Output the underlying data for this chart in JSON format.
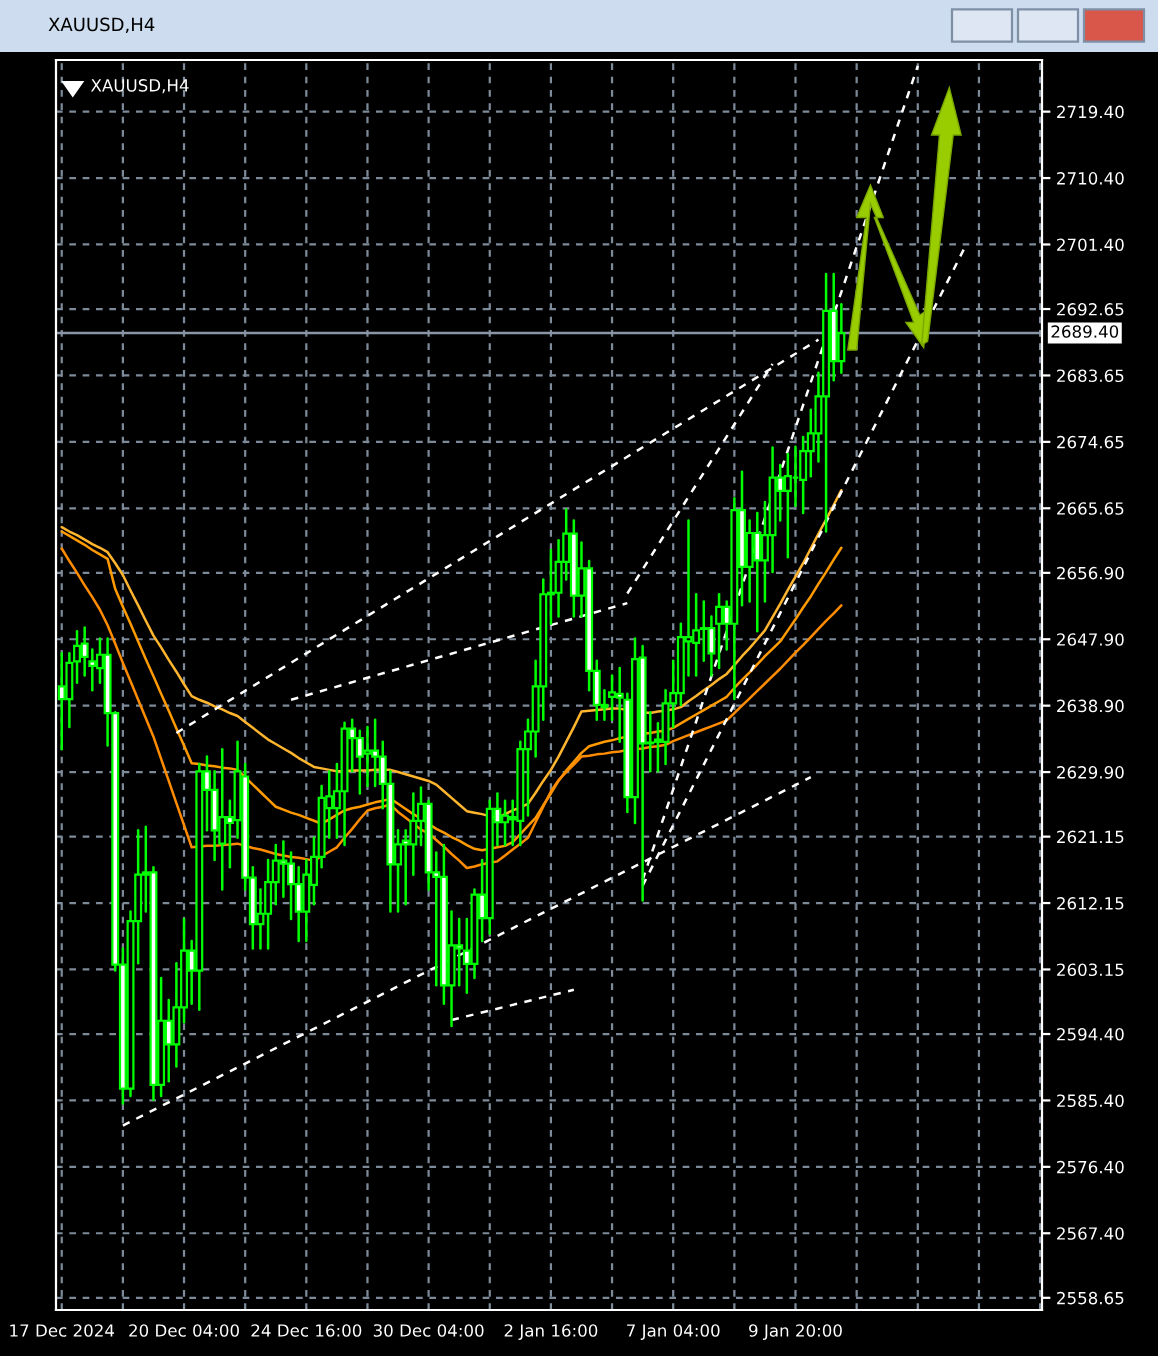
{
  "chart_data": {
    "type": "candlestick",
    "title": "XAUUSD,H4",
    "subtitle": "XAUUSD,H4",
    "categories": [
      "17 Dec 2024",
      null,
      null,
      null,
      null,
      null,
      null,
      null,
      null,
      null,
      null,
      null,
      null,
      null,
      null,
      null,
      "20 Dec 04:00",
      null,
      null,
      null,
      null,
      null,
      null,
      null,
      null,
      null,
      null,
      null,
      null,
      null,
      null,
      null,
      "24 Dec 16:00",
      null,
      null,
      null,
      null,
      null,
      null,
      null,
      null,
      null,
      null,
      null,
      null,
      null,
      null,
      null,
      "30 Dec 04:00",
      null,
      null,
      null,
      null,
      null,
      null,
      null,
      null,
      null,
      null,
      null,
      null,
      null,
      null,
      null,
      "2 Jan 16:00",
      null,
      null,
      null,
      null,
      null,
      null,
      null,
      null,
      null,
      null,
      null,
      null,
      null,
      null,
      null,
      "7 Jan 04:00",
      null,
      null,
      null,
      null,
      null,
      null,
      null,
      null,
      null,
      null,
      null,
      null,
      null,
      null,
      null,
      "9 Jan 20:00",
      null,
      null,
      null,
      null,
      null,
      null,
      null,
      null,
      null,
      null,
      null,
      null,
      null,
      null,
      null,
      null,
      null,
      null,
      null,
      null,
      null,
      null,
      null,
      null,
      null,
      null,
      null,
      null,
      null,
      null,
      null,
      null
    ],
    "ohlc": [
      [
        2641.5,
        2646,
        2633,
        2639.8
      ],
      [
        2639.8,
        2646,
        2636,
        2644.7
      ],
      [
        2644.9,
        2649,
        2642,
        2647
      ],
      [
        2647.3,
        2649.5,
        2643,
        2645.5
      ],
      [
        2644.9,
        2646.5,
        2641,
        2644.3
      ],
      [
        2644,
        2648,
        2642,
        2645.8
      ],
      [
        2645.8,
        2648,
        2633.5,
        2637.9
      ],
      [
        2637.9,
        2638,
        2603,
        2603.8
      ],
      [
        2603.8,
        2606,
        2585,
        2587
      ],
      [
        2587,
        2611,
        2586,
        2609.7
      ],
      [
        2609.7,
        2622,
        2604,
        2616
      ],
      [
        2616,
        2622.5,
        2611,
        2616.3
      ],
      [
        2616.3,
        2617,
        2585.5,
        2587.5
      ],
      [
        2587.5,
        2602,
        2586,
        2596.2
      ],
      [
        2596.2,
        2599,
        2588,
        2593
      ],
      [
        2593,
        2604,
        2590,
        2598
      ],
      [
        2598,
        2610,
        2596,
        2605.7
      ],
      [
        2605.7,
        2607,
        2598.5,
        2603
      ],
      [
        2603,
        2631,
        2597.7,
        2630
      ],
      [
        2630,
        2632,
        2622,
        2627.5
      ],
      [
        2627.5,
        2630,
        2618,
        2622
      ],
      [
        2620.2,
        2633,
        2614,
        2623.8
      ],
      [
        2623.8,
        2626,
        2617,
        2623
      ],
      [
        2623.4,
        2634,
        2621,
        2630
      ],
      [
        2629.3,
        2631,
        2614,
        2615.6
      ],
      [
        2615.6,
        2617,
        2606,
        2609.3
      ],
      [
        2609.3,
        2614,
        2606,
        2610.7
      ],
      [
        2610.7,
        2618,
        2606,
        2615
      ],
      [
        2615,
        2620,
        2612,
        2617.9
      ],
      [
        2617.9,
        2620.5,
        2613,
        2617.5
      ],
      [
        2617.5,
        2619,
        2610,
        2614.7
      ],
      [
        2614.7,
        2617,
        2607,
        2611
      ],
      [
        2611,
        2618,
        2607,
        2616
      ],
      [
        2614.6,
        2621,
        2612,
        2618.4
      ],
      [
        2618.4,
        2628,
        2617,
        2626.4
      ],
      [
        2625,
        2630,
        2621,
        2626.6
      ],
      [
        2625,
        2631,
        2621,
        2627.3
      ],
      [
        2627.3,
        2636.6,
        2620,
        2635.8
      ],
      [
        2635.8,
        2637,
        2630,
        2634.5
      ],
      [
        2634.5,
        2635.5,
        2627,
        2632
      ],
      [
        2632.4,
        2636,
        2628,
        2632.8
      ],
      [
        2632.8,
        2637,
        2628,
        2632
      ],
      [
        2632,
        2634,
        2625,
        2628.3
      ],
      [
        2628.3,
        2630,
        2611,
        2617.4
      ],
      [
        2617.4,
        2622,
        2611,
        2620.1
      ],
      [
        2620.6,
        2622,
        2612,
        2620.1
      ],
      [
        2620.1,
        2627,
        2616,
        2623.3
      ],
      [
        2623.3,
        2627.8,
        2620,
        2625.6
      ],
      [
        2625.6,
        2626,
        2614,
        2616.3
      ],
      [
        2616.3,
        2619,
        2601,
        2615.7
      ],
      [
        2615.7,
        2620,
        2598.5,
        2601
      ],
      [
        2601,
        2611,
        2595.5,
        2606.4
      ],
      [
        2606.4,
        2610,
        2601,
        2606
      ],
      [
        2605.7,
        2610,
        2600,
        2603.9
      ],
      [
        2603.9,
        2614,
        2602,
        2613.3
      ],
      [
        2613.3,
        2618,
        2607,
        2610.1
      ],
      [
        2610.1,
        2626,
        2608,
        2624.9
      ],
      [
        2624.9,
        2627,
        2620,
        2623.1
      ],
      [
        2623.1,
        2626,
        2620,
        2624
      ],
      [
        2623.8,
        2626,
        2620,
        2623.5
      ],
      [
        2623.3,
        2634,
        2620,
        2633
      ],
      [
        2633,
        2637,
        2624,
        2635.4
      ],
      [
        2635.4,
        2645,
        2632,
        2641.5
      ],
      [
        2641.5,
        2656,
        2637,
        2654
      ],
      [
        2654,
        2660,
        2650,
        2654.2
      ],
      [
        2654.2,
        2661.3,
        2651,
        2658.4
      ],
      [
        2658.4,
        2665.5,
        2656,
        2662.2
      ],
      [
        2662.2,
        2664,
        2651,
        2653.8
      ],
      [
        2653.8,
        2661,
        2651,
        2657.5
      ],
      [
        2657.5,
        2658.5,
        2641,
        2643.6
      ],
      [
        2643.6,
        2645,
        2637,
        2639
      ],
      [
        2639,
        2641,
        2637,
        2638.7
      ],
      [
        2640.1,
        2643,
        2637,
        2640.7
      ],
      [
        2640.5,
        2644,
        2634,
        2640
      ],
      [
        2639.7,
        2640.5,
        2624.5,
        2626.5
      ],
      [
        2626.5,
        2648,
        2623,
        2645.2
      ],
      [
        2645.4,
        2647,
        2612.5,
        2633.8
      ],
      [
        2633.9,
        2638,
        2630,
        2633.8
      ],
      [
        2634.3,
        2636.5,
        2630,
        2634
      ],
      [
        2634,
        2641,
        2631,
        2639.2
      ],
      [
        2639.2,
        2645,
        2636,
        2640.6
      ],
      [
        2640.6,
        2650,
        2639,
        2648.2
      ],
      [
        2647.6,
        2664,
        2643,
        2648.2
      ],
      [
        2647.4,
        2654,
        2643,
        2649.1
      ],
      [
        2649.3,
        2653,
        2645,
        2649.4
      ],
      [
        2649.4,
        2651,
        2643,
        2646
      ],
      [
        2650,
        2654,
        2644,
        2652.3
      ],
      [
        2652.3,
        2653,
        2646.5,
        2650
      ],
      [
        2650,
        2667,
        2639.8,
        2665.4
      ],
      [
        2665.4,
        2670.6,
        2652.5,
        2657.7
      ],
      [
        2657.7,
        2664,
        2653,
        2662.3
      ],
      [
        2662.3,
        2665,
        2649,
        2658.6
      ],
      [
        2658.6,
        2666.5,
        2653,
        2662
      ],
      [
        2662,
        2673.9,
        2657,
        2669.8
      ],
      [
        2669.8,
        2671.5,
        2664,
        2668
      ],
      [
        2668,
        2673,
        2659,
        2670
      ],
      [
        2669.8,
        2674,
        2666,
        2669.8
      ],
      [
        2669.5,
        2675.3,
        2665,
        2673.4
      ],
      [
        2673.4,
        2679,
        2670,
        2675.8
      ],
      [
        2675.8,
        2684,
        2672,
        2680.8
      ],
      [
        2680.8,
        2697.4,
        2662.5,
        2692.4
      ],
      [
        2692.4,
        2697.4,
        2683,
        2685.6
      ],
      [
        2685.6,
        2693.3,
        2684,
        2689.4
      ],
      null,
      null,
      null,
      null,
      null,
      null,
      null,
      null,
      null,
      null,
      null,
      null,
      null,
      null,
      null,
      null,
      null,
      null,
      null,
      null,
      null,
      null,
      null,
      null,
      null,
      null
    ],
    "series": [
      {
        "type": "line",
        "color": "#ffb52e",
        "line_style": "solid",
        "values": [
          2663.1,
          2662.5,
          2662,
          2661.4,
          2660.8,
          2660.3,
          2659.7,
          2658.2,
          2656.6,
          2654.5,
          2652.5,
          2650.4,
          2648.4,
          2646.8,
          2645.1,
          2643.5,
          2641.8,
          2640.2,
          2639.7,
          2639.3,
          2638.8,
          2638.4,
          2637.9,
          2637.5,
          2636.7,
          2635.9,
          2635.1,
          2634.3,
          2633.7,
          2633.1,
          2632.5,
          2631.8,
          2631.2,
          2630.6,
          2630.4,
          2630.2,
          2630,
          2630,
          2630.1,
          2630.1,
          2630.1,
          2630.2,
          2630.2,
          2630.2,
          2629.9,
          2629.6,
          2629.3,
          2629,
          2628.7,
          2628.2,
          2627.3,
          2626.4,
          2625.5,
          2624.6,
          2624.4,
          2624.2,
          2623.9,
          2623.7,
          2624.2,
          2624.7,
          2625.1,
          2625.6,
          2627.1,
          2628.7,
          2630.2,
          2632,
          2634,
          2636,
          2638.1,
          2638.2,
          2638.3,
          2638.4,
          2638.5,
          2638.5,
          2638.3,
          null,
          2638,
          2637.9,
          2638.1,
          2638.2,
          2638.4,
          2638.7,
          2639.5,
          2640.2,
          2641,
          2641.7,
          2642.5,
          2643.2,
          2644.4,
          2645.6,
          2646.7,
          2647.9,
          2649.1,
          2650.9,
          2652.7,
          2654.6,
          2656.4,
          2658.2,
          2660.2,
          2662.2,
          2664.1,
          2666.1,
          2668.1,
          null,
          null,
          null,
          null,
          null,
          null,
          null,
          null,
          null,
          null,
          null,
          null,
          null,
          null,
          null,
          null,
          null,
          null,
          null,
          null,
          null,
          null,
          null,
          null,
          null,
          null
        ]
      },
      {
        "type": "line",
        "color": "#ff9a00",
        "line_style": "solid",
        "values": [
          2662.5,
          2661.9,
          2661.3,
          2660.7,
          2660,
          2659.4,
          2658.8,
          2654.7,
          2652.3,
          2650,
          2647.6,
          2645.2,
          2642.9,
          2640.5,
          2638.2,
          2635.8,
          2633.5,
          2631.1,
          2631,
          2630.8,
          2630.7,
          2630.5,
          2630.4,
          2630.2,
          2629.2,
          2628.2,
          2627.2,
          2626.2,
          2625.2,
          2624.8,
          2624.4,
          2624.1,
          2623.7,
          2623.3,
          2622.9,
          2623.5,
          2624.1,
          2624.7,
          2625,
          2625.2,
          2625.5,
          2625.8,
          2626,
          2626.3,
          2625.6,
          2624.9,
          2624.2,
          2623.6,
          2622.9,
          2622.2,
          2621.7,
          2621.1,
          2620.6,
          2620,
          2619.5,
          2619.3,
          2619.5,
          2619.7,
          2619.9,
          2620.4,
          2621.5,
          2622.6,
          2623.7,
          2625.4,
          2627,
          2628.7,
          2630.1,
          2631.3,
          2632.5,
          2633.4,
          2633.7,
          2634,
          2634.2,
          2634.5,
          2634.7,
          null,
          2635.1,
          2635.2,
          2635.4,
          2635.5,
          2635.9,
          2636.5,
          2637.1,
          2637.7,
          2638.3,
          2638.9,
          2639.5,
          2640.1,
          2641.3,
          2642.4,
          2643.4,
          2644.5,
          2645.6,
          2646.6,
          2647.6,
          2649.1,
          2650.6,
          2652.2,
          2653.7,
          2655.4,
          2657,
          2658.7,
          2660.3,
          null,
          null,
          null,
          null,
          null,
          null,
          null,
          null,
          null,
          null,
          null,
          null,
          null,
          null,
          null,
          null,
          null,
          null,
          null,
          null,
          null,
          null,
          null,
          null,
          null,
          null
        ]
      },
      {
        "type": "line",
        "color": "#ff8c00",
        "line_style": "solid",
        "values": [
          2660.2,
          2658.5,
          2656.9,
          2655.2,
          2653.6,
          2651.9,
          2649.8,
          2647.3,
          2644.7,
          2642.2,
          2639.7,
          2637.2,
          2634.7,
          2631.7,
          2628.7,
          2625.7,
          2622.7,
          2619.7,
          2619.8,
          2619.9,
          2619.9,
          2620,
          2620.1,
          2620.2,
          2619.9,
          2619.6,
          2619.4,
          2619.1,
          2618.8,
          2618.6,
          2618.4,
          2618.3,
          2618.1,
          2617.9,
          2618.5,
          2619.1,
          2619.7,
          2621,
          2622.2,
          2623.5,
          2624.7,
          2625,
          2625.2,
          2625.5,
          2624.5,
          2623.7,
          2622.9,
          2622.1,
          2621.6,
          2620.7,
          2619.8,
          2618.8,
          2617.9,
          2616.9,
          2617.1,
          2617.4,
          2617.6,
          2617.8,
          2618.6,
          2619.4,
          2620.2,
          2621,
          2623.1,
          2625.2,
          2627.3,
          2628.8,
          2629.9,
          2630.9,
          2632,
          2632.1,
          2632.3,
          2632.4,
          2632.6,
          2632.7,
          2632.9,
          2633,
          2633.1,
          2633.3,
          2633.4,
          2633.6,
          2634.1,
          2634.5,
          2634.9,
          2635.3,
          2635.7,
          2636.1,
          2636.5,
          2636.9,
          2637.9,
          2638.9,
          2639.9,
          2640.9,
          2641.9,
          2642.9,
          2643.9,
          2645,
          2646.1,
          2647.1,
          2648.2,
          2649.3,
          2650.4,
          2651.4,
          2652.5,
          null,
          null,
          null,
          null,
          null,
          null,
          null,
          null,
          null,
          null,
          null,
          null,
          null,
          null,
          null,
          null,
          null,
          null,
          null,
          null,
          null,
          null,
          null,
          null,
          null,
          null
        ]
      },
      {
        "type": "line",
        "color": "#ffffff",
        "line_style": "dashed",
        "values": [
          null,
          null,
          null,
          null,
          null,
          null,
          null,
          null,
          2582,
          null,
          null,
          null,
          null,
          null,
          null,
          null,
          null,
          null,
          null,
          null,
          null,
          null,
          null,
          null,
          null,
          null,
          null,
          null,
          null,
          null,
          null,
          null,
          null,
          null,
          null,
          null,
          null,
          null,
          null,
          null,
          null,
          null,
          null,
          null,
          null,
          null,
          null,
          null,
          null,
          null,
          null,
          null,
          null,
          null,
          null,
          null,
          null,
          null,
          null,
          null,
          null,
          null,
          null,
          null,
          null,
          null,
          null,
          null,
          null,
          null,
          null,
          null,
          null,
          null,
          null,
          null,
          null,
          null,
          null,
          null,
          null,
          null,
          null,
          null,
          null,
          null,
          null,
          null,
          null,
          null,
          null,
          null,
          null,
          null,
          null,
          null,
          null,
          null,
          2629.2,
          null,
          null,
          null,
          null,
          null,
          null,
          null,
          null,
          null,
          null,
          null,
          null,
          null,
          null,
          null,
          null,
          null,
          null,
          null,
          null,
          null,
          null,
          null,
          null,
          null,
          null,
          null,
          null,
          null,
          null
        ]
      },
      {
        "type": "line",
        "color": "#ffffff",
        "line_style": "dashed",
        "values": [
          null,
          null,
          null,
          null,
          null,
          null,
          null,
          null,
          null,
          null,
          null,
          null,
          null,
          null,
          null,
          2635.2,
          null,
          null,
          null,
          null,
          null,
          null,
          null,
          null,
          null,
          null,
          null,
          null,
          null,
          null,
          null,
          null,
          null,
          null,
          null,
          null,
          null,
          null,
          null,
          null,
          null,
          null,
          null,
          null,
          null,
          null,
          null,
          null,
          null,
          null,
          null,
          null,
          null,
          null,
          null,
          null,
          null,
          null,
          null,
          null,
          null,
          null,
          null,
          null,
          null,
          null,
          null,
          null,
          null,
          null,
          null,
          null,
          null,
          null,
          null,
          null,
          null,
          null,
          null,
          null,
          null,
          null,
          null,
          null,
          null,
          null,
          null,
          null,
          null,
          null,
          null,
          null,
          null,
          null,
          null,
          null,
          null,
          null,
          null,
          2688.5,
          null,
          null,
          null,
          null,
          null,
          null,
          null,
          null,
          null,
          null,
          null,
          null,
          null,
          null,
          null,
          null,
          null,
          null,
          null,
          null,
          null,
          null,
          null,
          null,
          null,
          null,
          null,
          null,
          null
        ]
      },
      {
        "type": "line",
        "color": "#ffffff",
        "line_style": "dashed",
        "values": [
          null,
          null,
          null,
          null,
          null,
          null,
          null,
          null,
          null,
          null,
          null,
          null,
          null,
          null,
          null,
          null,
          null,
          null,
          null,
          null,
          null,
          null,
          null,
          null,
          null,
          null,
          null,
          null,
          null,
          null,
          2639.7,
          null,
          null,
          null,
          null,
          null,
          null,
          null,
          null,
          null,
          null,
          null,
          null,
          null,
          null,
          null,
          null,
          null,
          null,
          null,
          null,
          null,
          null,
          null,
          null,
          null,
          null,
          null,
          null,
          null,
          null,
          null,
          null,
          null,
          null,
          null,
          null,
          null,
          null,
          null,
          null,
          null,
          null,
          null,
          2652.8,
          null,
          null,
          null,
          null,
          null,
          null,
          null,
          null,
          null,
          null,
          null,
          null,
          null,
          null,
          null,
          null,
          null,
          null,
          null,
          null,
          null,
          null,
          null,
          null,
          null,
          null,
          null,
          null,
          null,
          null,
          null,
          null,
          null,
          null,
          null,
          null,
          null,
          null,
          null,
          null,
          null,
          null,
          null,
          null,
          null,
          null,
          null,
          null,
          null,
          null,
          null,
          null,
          null,
          null
        ]
      },
      {
        "type": "line",
        "color": "#ffffff",
        "line_style": "dashed",
        "values": [
          null,
          null,
          null,
          null,
          null,
          null,
          null,
          null,
          null,
          null,
          null,
          null,
          null,
          null,
          null,
          null,
          null,
          null,
          null,
          null,
          null,
          null,
          null,
          null,
          null,
          null,
          null,
          null,
          null,
          null,
          null,
          null,
          null,
          null,
          null,
          null,
          null,
          null,
          null,
          null,
          null,
          null,
          null,
          null,
          null,
          null,
          null,
          null,
          null,
          null,
          null,
          2596.3,
          null,
          null,
          null,
          null,
          null,
          null,
          null,
          null,
          null,
          null,
          null,
          null,
          null,
          null,
          null,
          2600.4,
          null,
          null,
          null,
          null,
          null,
          null,
          null,
          null,
          null,
          null,
          null,
          null,
          null,
          null,
          null,
          null,
          null,
          null,
          null,
          null,
          null,
          null,
          null,
          null,
          null,
          null,
          null,
          null,
          null,
          null,
          null,
          null,
          null,
          null,
          null,
          null,
          null,
          null,
          null,
          null,
          null,
          null,
          null,
          null,
          null,
          null,
          null,
          null,
          null,
          null,
          null,
          null,
          null,
          null,
          null,
          null,
          null,
          null,
          null,
          null,
          null
        ]
      },
      {
        "type": "line",
        "color": "#ffffff",
        "line_style": "dashed",
        "values": [
          null,
          null,
          null,
          null,
          null,
          null,
          null,
          null,
          null,
          null,
          null,
          null,
          null,
          null,
          null,
          null,
          null,
          null,
          null,
          null,
          null,
          null,
          null,
          null,
          null,
          null,
          null,
          null,
          null,
          null,
          null,
          null,
          null,
          null,
          null,
          null,
          null,
          null,
          null,
          null,
          null,
          null,
          null,
          null,
          null,
          null,
          null,
          null,
          null,
          null,
          null,
          null,
          null,
          null,
          null,
          null,
          null,
          null,
          null,
          null,
          null,
          null,
          null,
          null,
          null,
          null,
          null,
          null,
          null,
          null,
          null,
          null,
          null,
          null,
          null,
          null,
          2615.3,
          null,
          null,
          null,
          null,
          null,
          null,
          null,
          null,
          null,
          null,
          null,
          null,
          null,
          null,
          null,
          null,
          null,
          null,
          null,
          null,
          null,
          null,
          null,
          null,
          null,
          null,
          null,
          null,
          null,
          null,
          null,
          null,
          null,
          null,
          null,
          2725.6,
          null,
          null,
          null,
          null,
          null,
          null,
          null,
          null,
          null,
          null,
          null,
          null,
          null,
          null,
          null,
          null
        ]
      },
      {
        "type": "line",
        "color": "#ffffff",
        "line_style": "dashed",
        "values": [
          null,
          null,
          null,
          null,
          null,
          null,
          null,
          null,
          null,
          null,
          null,
          null,
          null,
          null,
          null,
          null,
          null,
          null,
          null,
          null,
          null,
          null,
          null,
          null,
          null,
          null,
          null,
          null,
          null,
          null,
          null,
          null,
          null,
          null,
          null,
          null,
          null,
          null,
          null,
          null,
          null,
          null,
          null,
          null,
          null,
          null,
          null,
          null,
          null,
          null,
          null,
          null,
          null,
          null,
          null,
          null,
          null,
          null,
          null,
          null,
          null,
          null,
          null,
          null,
          null,
          null,
          null,
          null,
          null,
          null,
          null,
          null,
          null,
          null,
          2654.1,
          null,
          null,
          null,
          null,
          null,
          null,
          null,
          null,
          null,
          null,
          null,
          null,
          null,
          null,
          null,
          null,
          null,
          null,
          2685.2,
          null,
          null,
          null,
          null,
          null,
          null,
          null,
          null,
          null,
          null,
          null,
          null,
          null,
          null,
          null,
          null,
          null,
          null,
          null,
          null,
          null,
          null,
          null,
          null,
          null,
          null,
          null,
          null,
          null,
          null,
          null,
          null,
          null,
          null,
          null
        ]
      },
      {
        "type": "line",
        "color": "#ffffff",
        "line_style": "dashed",
        "values": [
          null,
          null,
          null,
          null,
          null,
          null,
          null,
          null,
          null,
          null,
          null,
          null,
          null,
          null,
          null,
          null,
          null,
          null,
          null,
          null,
          null,
          null,
          null,
          null,
          null,
          null,
          null,
          null,
          null,
          null,
          null,
          null,
          null,
          null,
          null,
          null,
          null,
          null,
          null,
          null,
          null,
          null,
          null,
          null,
          null,
          null,
          null,
          null,
          null,
          null,
          null,
          null,
          null,
          null,
          null,
          null,
          null,
          null,
          null,
          null,
          null,
          null,
          null,
          null,
          null,
          null,
          null,
          null,
          null,
          null,
          null,
          null,
          null,
          null,
          null,
          null,
          2614.5,
          null,
          null,
          null,
          null,
          null,
          null,
          null,
          null,
          null,
          null,
          null,
          null,
          null,
          null,
          null,
          null,
          null,
          null,
          null,
          null,
          null,
          null,
          null,
          null,
          null,
          null,
          null,
          null,
          null,
          null,
          null,
          null,
          null,
          null,
          null,
          null,
          null,
          null,
          null,
          null,
          null,
          2700.7,
          null,
          null,
          null,
          null,
          null,
          null,
          null,
          null,
          null,
          null
        ]
      }
    ],
    "ref_lines": [
      {
        "axis": "y",
        "value": 2689.4,
        "label": "2689.40",
        "color": "#8a96a6"
      }
    ],
    "ylim": [
      2557.0,
      2726.4
    ],
    "yticks": [
      {
        "value": 2558.65,
        "label": "2558.65"
      },
      {
        "value": 2567.4,
        "label": "2567.40"
      },
      {
        "value": 2576.4,
        "label": "2576.40"
      },
      {
        "value": 2585.4,
        "label": "2585.40"
      },
      {
        "value": 2594.4,
        "label": "2594.40"
      },
      {
        "value": 2603.15,
        "label": "2603.15"
      },
      {
        "value": 2612.15,
        "label": "2612.15"
      },
      {
        "value": 2621.15,
        "label": "2621.15"
      },
      {
        "value": 2629.9,
        "label": "2629.90"
      },
      {
        "value": 2638.9,
        "label": "2638.90"
      },
      {
        "value": 2647.9,
        "label": "2647.90"
      },
      {
        "value": 2656.9,
        "label": "2656.90"
      },
      {
        "value": 2665.65,
        "label": "2665.65"
      },
      {
        "value": 2674.65,
        "label": "2674.65"
      },
      {
        "value": 2683.65,
        "label": "2683.65"
      },
      {
        "value": 2692.65,
        "label": "2692.65"
      },
      {
        "value": 2701.4,
        "label": "2701.40"
      },
      {
        "value": 2710.4,
        "label": "2710.40"
      },
      {
        "value": 2719.4,
        "label": "2719.40"
      }
    ],
    "grid": true
  }
}
